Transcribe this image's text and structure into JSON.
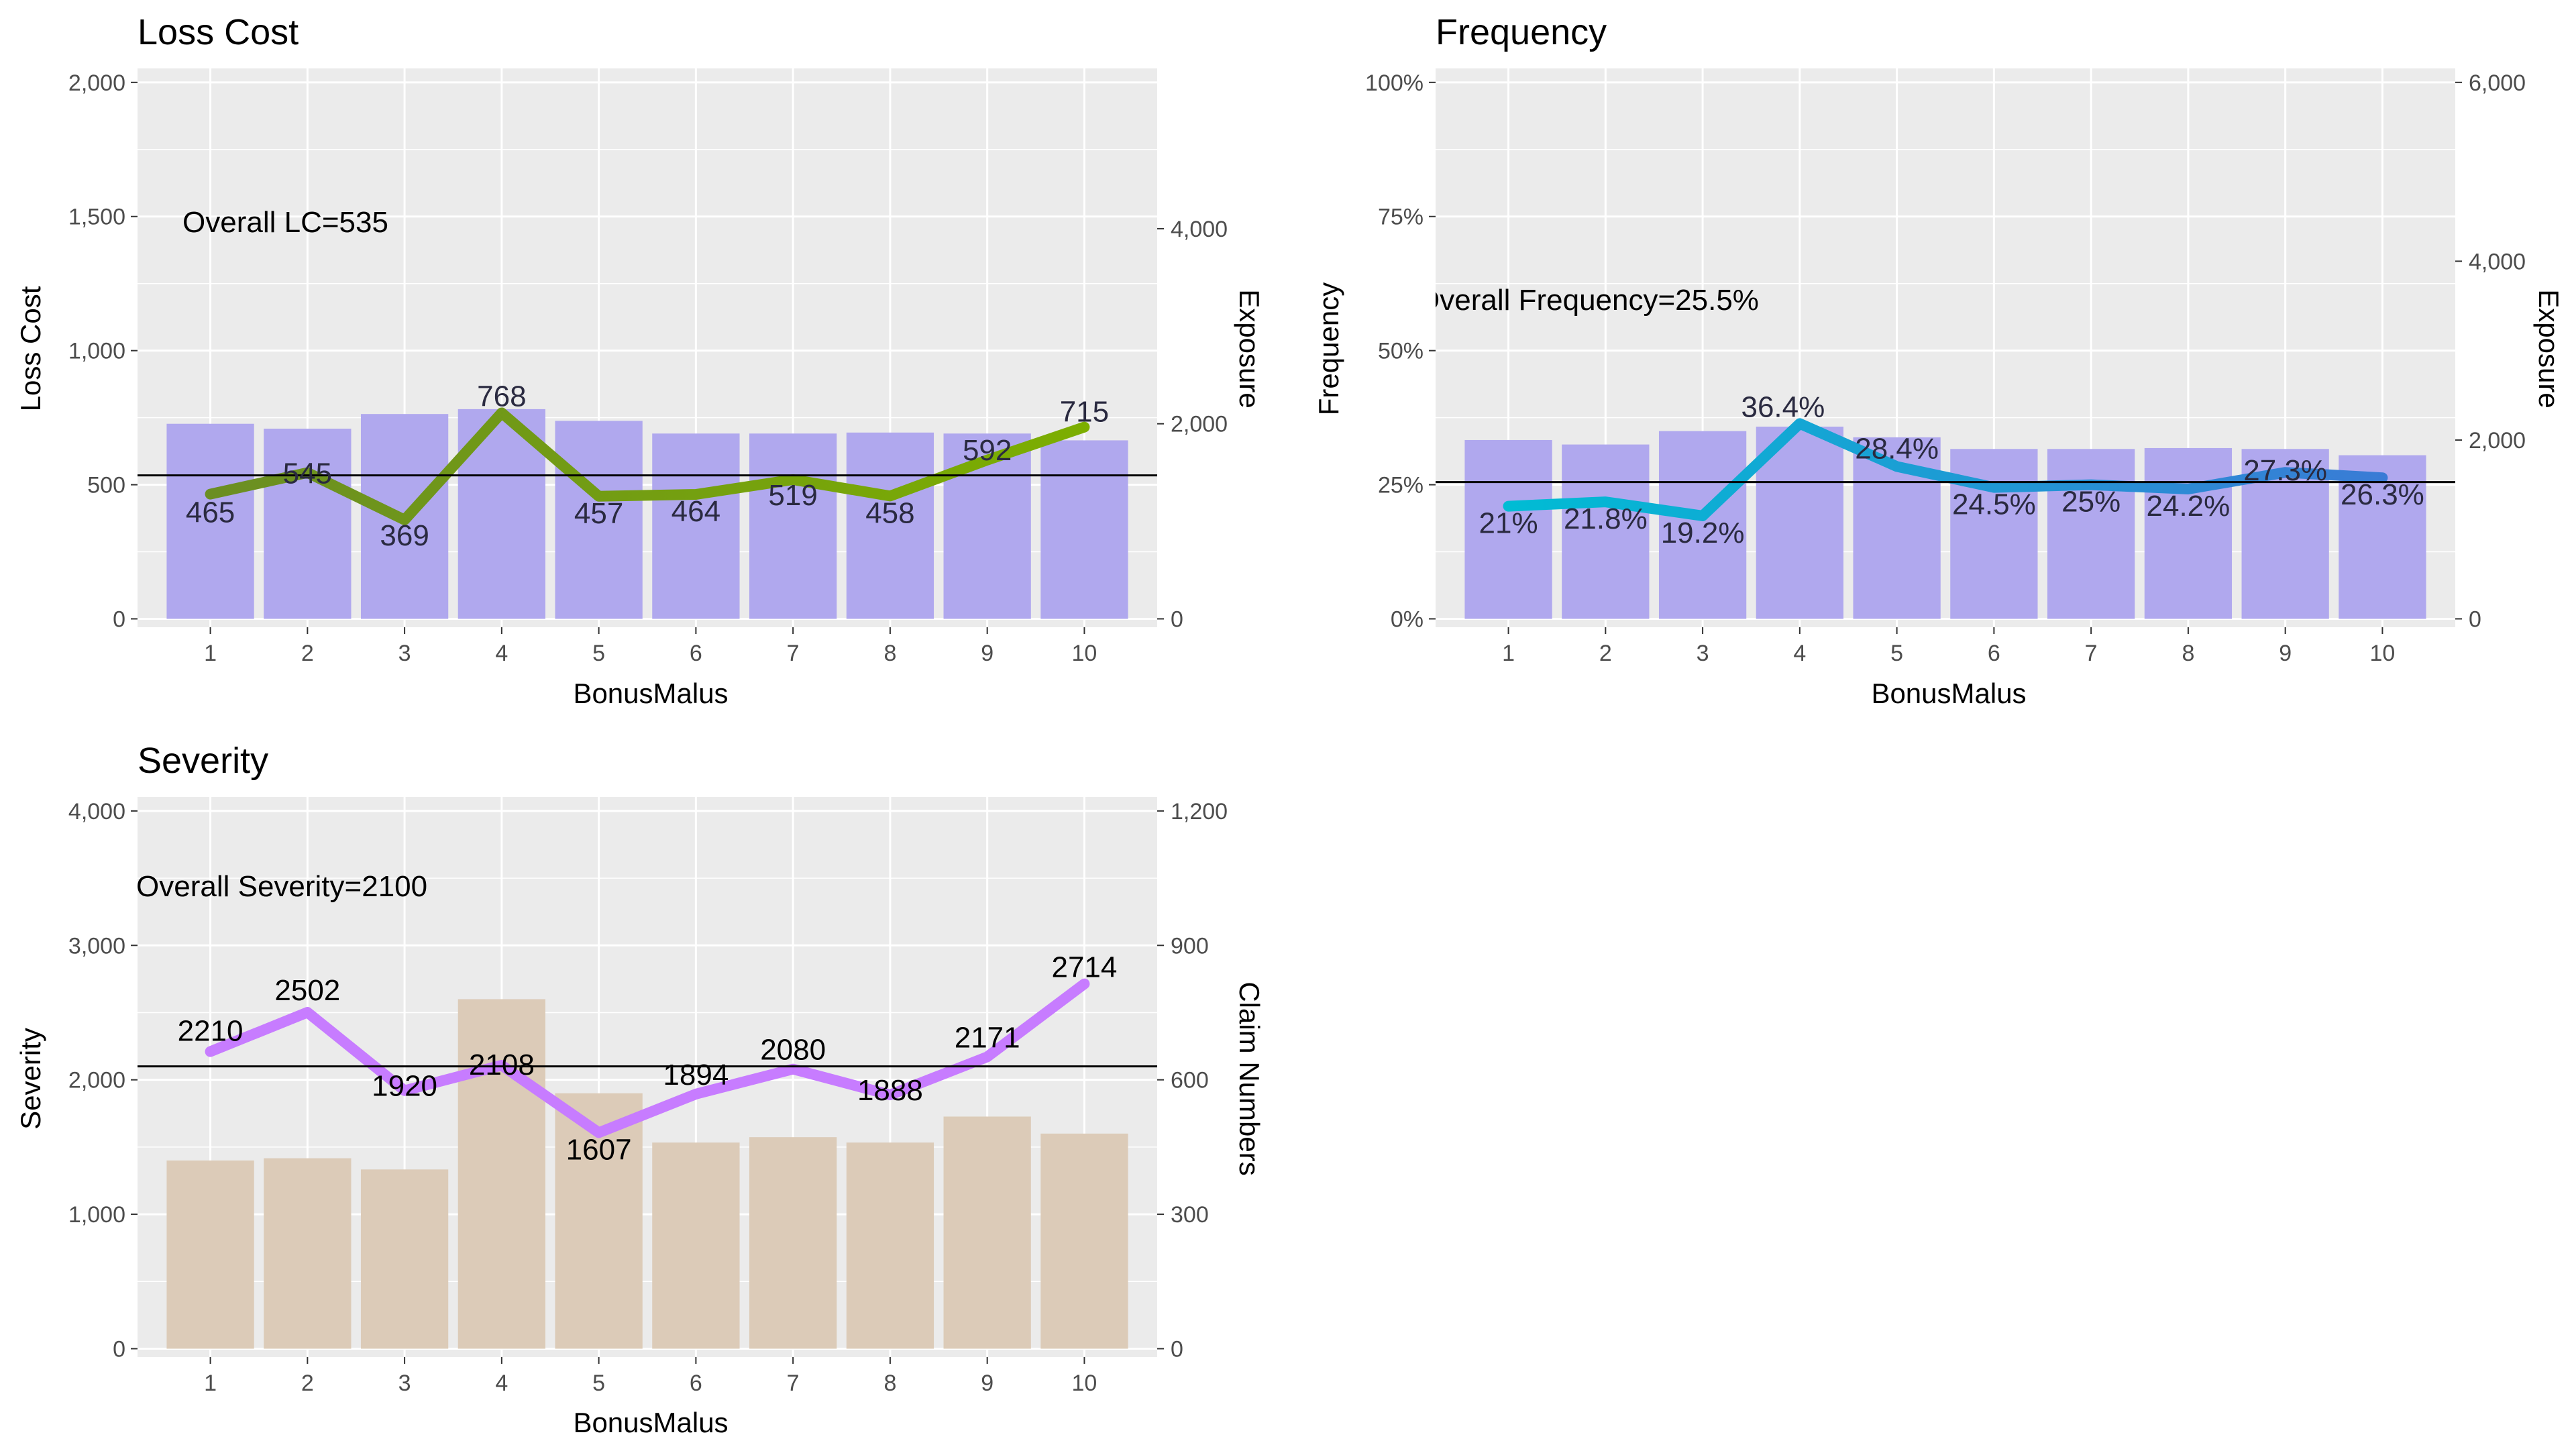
{
  "chart_data": [
    {
      "id": "loss-cost",
      "type": "bar+line",
      "title": "Loss Cost",
      "xlabel": "BonusMalus",
      "ylabel": "Loss Cost",
      "y2label": "Exposure",
      "categories": [
        "1",
        "2",
        "3",
        "4",
        "5",
        "6",
        "7",
        "8",
        "9",
        "10"
      ],
      "ylim": [
        0,
        2000
      ],
      "yticks": [
        0,
        500,
        1000,
        1500,
        2000
      ],
      "ytick_labels": [
        "0",
        "500",
        "1,000",
        "1,500",
        "2,000"
      ],
      "y2lim": [
        0,
        5500
      ],
      "y2ticks": [
        0,
        2000,
        4000
      ],
      "y2tick_labels": [
        "0",
        "2,000",
        "4,000"
      ],
      "series": [
        {
          "name": "Loss Cost",
          "kind": "line",
          "axis": "left",
          "values": [
            465,
            545,
            369,
            768,
            457,
            464,
            519,
            458,
            592,
            715
          ],
          "labels": [
            "465",
            "545",
            "369",
            "768",
            "457",
            "464",
            "519",
            "458",
            "592",
            "715"
          ]
        },
        {
          "name": "Exposure",
          "kind": "bar",
          "axis": "right",
          "values": [
            2000,
            1950,
            2100,
            2150,
            2030,
            1900,
            1900,
            1910,
            1900,
            1830
          ]
        }
      ],
      "reference_line": {
        "value": 535,
        "label": "Overall LC=535"
      },
      "colors": {
        "bar": "#b0a8ee",
        "line_start": "#6b8e23",
        "line_end": "#7cae00",
        "label": "#2a2a40",
        "panel": "#ebebeb",
        "grid": "#ffffff"
      }
    },
    {
      "id": "frequency",
      "type": "bar+line",
      "title": "Frequency",
      "xlabel": "BonusMalus",
      "ylabel": "Frequency",
      "y2label": "Exposure",
      "categories": [
        "1",
        "2",
        "3",
        "4",
        "5",
        "6",
        "7",
        "8",
        "9",
        "10"
      ],
      "ylim": [
        0,
        1.0
      ],
      "yticks": [
        0,
        0.25,
        0.5,
        0.75,
        1.0
      ],
      "ytick_labels": [
        "0%",
        "25%",
        "50%",
        "75%",
        "100%"
      ],
      "y2lim": [
        0,
        6000
      ],
      "y2ticks": [
        0,
        2000,
        4000,
        6000
      ],
      "y2tick_labels": [
        "0",
        "2,000",
        "4,000",
        "6,000"
      ],
      "series": [
        {
          "name": "Frequency",
          "kind": "line",
          "axis": "left",
          "values": [
            0.21,
            0.218,
            0.192,
            0.364,
            0.284,
            0.245,
            0.25,
            0.242,
            0.273,
            0.263
          ],
          "labels": [
            "21%",
            "21.8%",
            "19.2%",
            "36.4%",
            "28.4%",
            "24.5%",
            "25%",
            "24.2%",
            "27.3%",
            "26.3%"
          ]
        },
        {
          "name": "Exposure",
          "kind": "bar",
          "axis": "right",
          "values": [
            2000,
            1950,
            2100,
            2150,
            2030,
            1900,
            1900,
            1910,
            1900,
            1830
          ]
        }
      ],
      "reference_line": {
        "value": 0.255,
        "label": "Overall Frequency=25.5%"
      },
      "colors": {
        "bar": "#b0a8ee",
        "line_start": "#00bcd4",
        "line_end": "#3a7bd5",
        "label": "#2a2a40",
        "panel": "#ebebeb",
        "grid": "#ffffff"
      }
    },
    {
      "id": "severity",
      "type": "bar+line",
      "title": "Severity",
      "xlabel": "BonusMalus",
      "ylabel": "Severity",
      "y2label": "Claim Numbers",
      "categories": [
        "1",
        "2",
        "3",
        "4",
        "5",
        "6",
        "7",
        "8",
        "9",
        "10"
      ],
      "ylim": [
        0,
        4000
      ],
      "yticks": [
        0,
        1000,
        2000,
        3000,
        4000
      ],
      "ytick_labels": [
        "0",
        "1,000",
        "2,000",
        "3,000",
        "4,000"
      ],
      "y2lim": [
        0,
        1200
      ],
      "y2ticks": [
        0,
        300,
        600,
        900,
        1200
      ],
      "y2tick_labels": [
        "0",
        "300",
        "600",
        "900",
        "1,200"
      ],
      "series": [
        {
          "name": "Severity",
          "kind": "line",
          "axis": "left",
          "values": [
            2210,
            2502,
            1920,
            2108,
            1607,
            1894,
            2080,
            1888,
            2171,
            2714
          ],
          "labels": [
            "2210",
            "2502",
            "1920",
            "2108",
            "1607",
            "1894",
            "2080",
            "1888",
            "2171",
            "2714"
          ]
        },
        {
          "name": "Claim Numbers",
          "kind": "bar",
          "axis": "right",
          "values": [
            420,
            425,
            400,
            780,
            570,
            460,
            472,
            460,
            518,
            480
          ]
        }
      ],
      "reference_line": {
        "value": 2100,
        "label": "Overall Severity=2100"
      },
      "colors": {
        "bar": "#dccbb8",
        "line_start": "#c77cff",
        "line_end": "#c77cff",
        "label": "#000000",
        "panel": "#ebebeb",
        "grid": "#ffffff"
      }
    }
  ]
}
